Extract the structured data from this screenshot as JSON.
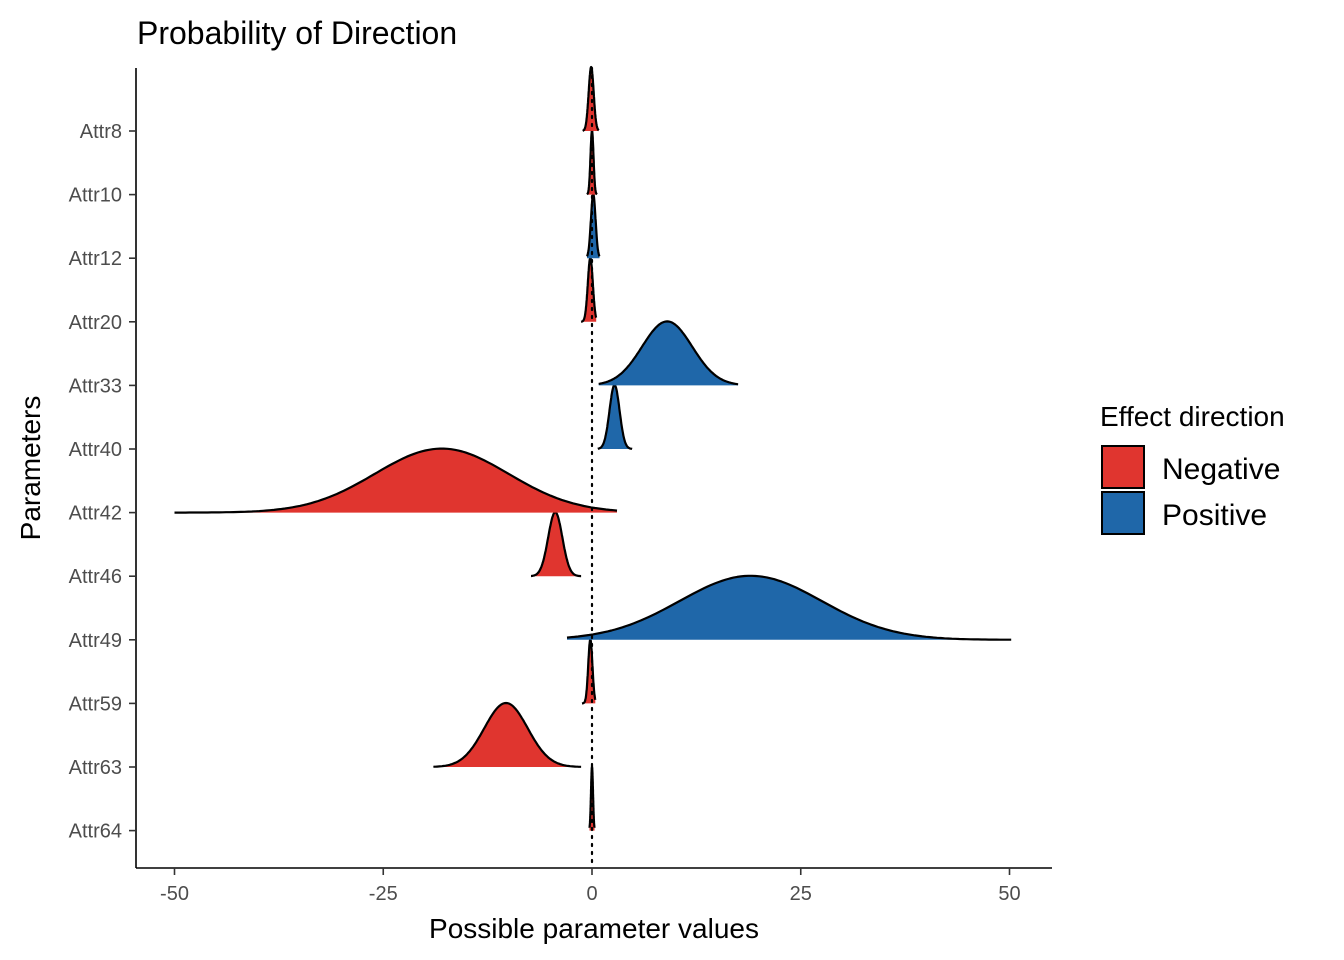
{
  "chart_data": {
    "type": "area",
    "title": "Probability of Direction",
    "xlabel": "Possible parameter values",
    "ylabel": "Parameters",
    "xlim": [
      -52,
      55
    ],
    "x_ticks": [
      -50,
      -25,
      0,
      25,
      50
    ],
    "x_tick_labels": [
      "-50",
      "-25",
      "0",
      "25",
      "50"
    ],
    "categories": [
      "Attr8",
      "Attr10",
      "Attr12",
      "Attr20",
      "Attr33",
      "Attr40",
      "Attr42",
      "Attr46",
      "Attr49",
      "Attr59",
      "Attr63",
      "Attr64"
    ],
    "reference_line_x": 0,
    "grid": false,
    "legend": {
      "title": "Effect direction",
      "position": "right",
      "entries": [
        {
          "label": "Negative",
          "color": "#E0352F"
        },
        {
          "label": "Positive",
          "color": "#1F67A9"
        }
      ]
    },
    "series": [
      {
        "parameter": "Attr8",
        "mean": -0.1,
        "sd": 0.3,
        "range": [
          -1.1,
          0.8
        ],
        "direction": "Negative"
      },
      {
        "parameter": "Attr10",
        "mean": 0.0,
        "sd": 0.18,
        "range": [
          -0.6,
          0.6
        ],
        "direction": "Negative"
      },
      {
        "parameter": "Attr12",
        "mean": 0.15,
        "sd": 0.28,
        "range": [
          -0.6,
          0.9
        ],
        "direction": "Positive"
      },
      {
        "parameter": "Attr20",
        "mean": -0.2,
        "sd": 0.3,
        "range": [
          -1.3,
          0.5
        ],
        "direction": "Negative"
      },
      {
        "parameter": "Attr33",
        "mean": 9.0,
        "sd": 3.0,
        "range": [
          0.8,
          17.5
        ],
        "direction": "Positive"
      },
      {
        "parameter": "Attr40",
        "mean": 2.7,
        "sd": 0.6,
        "range": [
          0.7,
          4.8
        ],
        "direction": "Positive"
      },
      {
        "parameter": "Attr42",
        "mean": -18.0,
        "sd": 8.0,
        "range": [
          -50.0,
          3.0
        ],
        "direction": "Negative"
      },
      {
        "parameter": "Attr46",
        "mean": -4.4,
        "sd": 0.85,
        "range": [
          -7.3,
          -1.3
        ],
        "direction": "Negative"
      },
      {
        "parameter": "Attr49",
        "mean": 19.0,
        "sd": 8.5,
        "range": [
          -3.0,
          50.2
        ],
        "direction": "Positive"
      },
      {
        "parameter": "Attr59",
        "mean": -0.2,
        "sd": 0.25,
        "range": [
          -1.2,
          0.4
        ],
        "direction": "Negative"
      },
      {
        "parameter": "Attr63",
        "mean": -10.3,
        "sd": 2.6,
        "range": [
          -19.0,
          -1.3
        ],
        "direction": "Negative"
      },
      {
        "parameter": "Attr64",
        "mean": 0.0,
        "sd": 0.12,
        "range": [
          -0.3,
          0.3
        ],
        "direction": "Negative"
      }
    ]
  }
}
